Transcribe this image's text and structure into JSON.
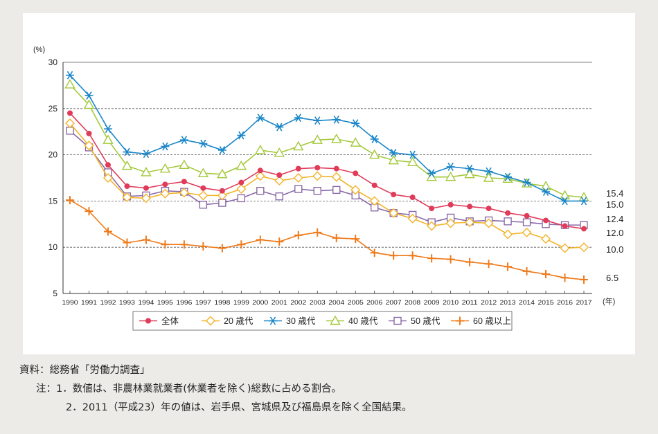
{
  "chart_data": {
    "type": "line",
    "ylabel": "(%)",
    "x_unit": "(年)",
    "ylim": [
      5,
      30
    ],
    "yticks": [
      5,
      10,
      15,
      20,
      25,
      30
    ],
    "grid": true,
    "legend_placement": "bottom",
    "categories": [
      "1990",
      "1991",
      "1992",
      "1993",
      "1994",
      "1995",
      "1996",
      "1997",
      "1998",
      "1999",
      "2000",
      "2001",
      "2002",
      "2003",
      "2004",
      "2005",
      "2006",
      "2007",
      "2008",
      "2009",
      "2010",
      "2011",
      "2012",
      "2013",
      "2014",
      "2015",
      "2016",
      "2017"
    ],
    "series": [
      {
        "name": "全体",
        "color": "#e03c5a",
        "marker": "dot",
        "values": [
          24.5,
          22.3,
          18.9,
          16.6,
          16.4,
          16.8,
          17.1,
          16.4,
          16.1,
          17.0,
          18.3,
          17.8,
          18.5,
          18.6,
          18.5,
          18.0,
          16.7,
          15.7,
          15.4,
          14.2,
          14.6,
          14.4,
          14.2,
          13.7,
          13.4,
          12.9,
          12.3,
          12.0
        ],
        "end_label": "12.0"
      },
      {
        "name": "20 歳代",
        "color": "#f2b328",
        "marker": "diamond",
        "values": [
          23.4,
          21.0,
          17.5,
          15.4,
          15.3,
          15.8,
          15.9,
          15.6,
          15.6,
          16.3,
          17.7,
          17.2,
          17.5,
          17.7,
          17.6,
          16.2,
          15.0,
          13.7,
          13.1,
          12.3,
          12.6,
          12.7,
          12.6,
          11.4,
          11.6,
          10.9,
          9.9,
          10.0
        ],
        "end_label": "10.0"
      },
      {
        "name": "30 歳代",
        "color": "#1a86c8",
        "marker": "asterisk",
        "values": [
          28.6,
          26.4,
          22.8,
          20.3,
          20.1,
          20.9,
          21.6,
          21.2,
          20.5,
          22.1,
          24.0,
          23.0,
          24.0,
          23.7,
          23.8,
          23.4,
          21.7,
          20.2,
          20.0,
          18.0,
          18.7,
          18.5,
          18.2,
          17.6,
          17.0,
          16.0,
          15.0,
          15.0
        ],
        "end_label": "15.0"
      },
      {
        "name": "40 歳代",
        "color": "#a3c93a",
        "marker": "triangle",
        "values": [
          27.6,
          25.4,
          21.6,
          18.8,
          18.1,
          18.5,
          18.9,
          18.0,
          17.9,
          18.8,
          20.5,
          20.2,
          20.9,
          21.6,
          21.7,
          21.3,
          20.0,
          19.4,
          19.2,
          17.6,
          17.6,
          17.9,
          17.5,
          17.4,
          16.9,
          16.6,
          15.6,
          15.4
        ],
        "end_label": "15.4"
      },
      {
        "name": "50 歳代",
        "color": "#8a6aa8",
        "marker": "square",
        "values": [
          22.6,
          20.8,
          18.1,
          15.5,
          15.6,
          16.1,
          16.0,
          14.6,
          14.8,
          15.3,
          16.1,
          15.5,
          16.3,
          16.1,
          16.2,
          15.6,
          14.3,
          13.7,
          13.5,
          12.7,
          13.2,
          12.8,
          12.9,
          12.8,
          12.7,
          12.5,
          12.4,
          12.4
        ],
        "end_label": "12.4"
      },
      {
        "name": "60 歳以上",
        "color": "#ef7a1a",
        "marker": "plus",
        "values": [
          15.1,
          13.9,
          11.7,
          10.5,
          10.8,
          10.3,
          10.3,
          10.1,
          9.9,
          10.3,
          10.8,
          10.6,
          11.3,
          11.6,
          11.0,
          10.9,
          9.4,
          9.1,
          9.1,
          8.8,
          8.7,
          8.4,
          8.2,
          7.9,
          7.4,
          7.1,
          6.7,
          6.5
        ],
        "end_label": "6.5"
      }
    ]
  },
  "notes": {
    "source": "資料：総務省「労働力調査」",
    "note1": "注：1．数値は、非農林業就業者(休業者を除く)総数に占める割合。",
    "note2": "2．2011（平成23）年の値は、岩手県、宮城県及び福島県を除く全国結果。"
  }
}
